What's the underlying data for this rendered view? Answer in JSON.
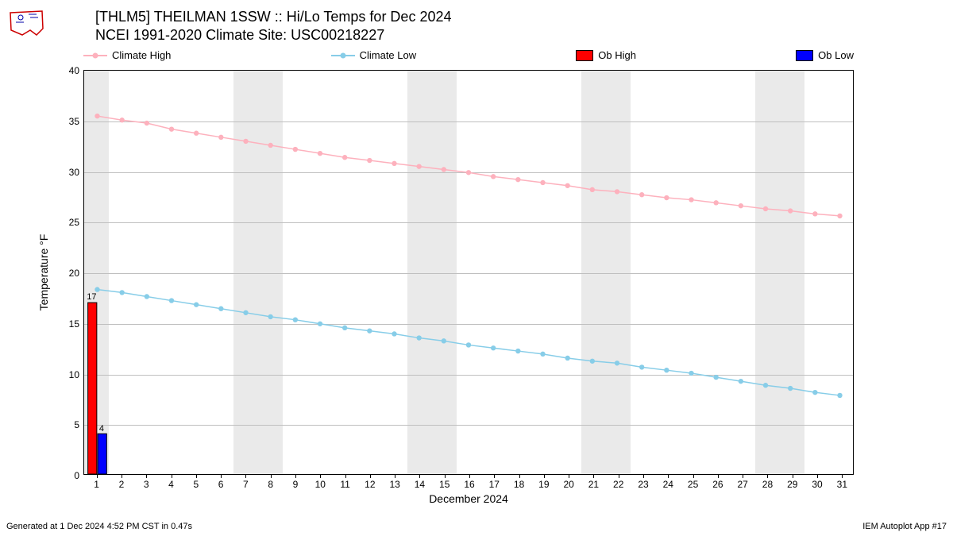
{
  "title_line1": "[THLM5] THEILMAN 1SSW :: Hi/Lo Temps for Dec 2024",
  "title_line2": "NCEI 1991-2020 Climate Site: USC00218227",
  "ylabel": "Temperature °F",
  "xlabel": "December 2024",
  "footer_left": "Generated at 1 Dec 2024 4:52 PM CST in 0.47s",
  "footer_right": "IEM Autoplot App #17",
  "legend": {
    "climate_high": "Climate High",
    "climate_low": "Climate Low",
    "ob_high": "Ob High",
    "ob_low": "Ob Low"
  },
  "colors": {
    "climate_high": "#fdb1bd",
    "climate_low": "#87cde8",
    "ob_high_fill": "#ff0000",
    "ob_high_stroke": "#000000",
    "ob_low_fill": "#0000ff",
    "ob_low_stroke": "#000000",
    "grid": "#bfbfbf",
    "weekend_band": "#eaeaea",
    "background": "#ffffff",
    "text": "#000000"
  },
  "chart": {
    "type": "line+bar",
    "xlim": [
      0.5,
      31.5
    ],
    "ylim": [
      0,
      40
    ],
    "xtick_step": 1,
    "ytick_step": 5,
    "x_days": [
      1,
      2,
      3,
      4,
      5,
      6,
      7,
      8,
      9,
      10,
      11,
      12,
      13,
      14,
      15,
      16,
      17,
      18,
      19,
      20,
      21,
      22,
      23,
      24,
      25,
      26,
      27,
      28,
      29,
      30,
      31
    ],
    "climate_high": [
      35.5,
      35.1,
      34.8,
      34.2,
      33.8,
      33.4,
      33.0,
      32.6,
      32.2,
      31.8,
      31.4,
      31.1,
      30.8,
      30.5,
      30.2,
      29.9,
      29.5,
      29.2,
      28.9,
      28.6,
      28.2,
      28.0,
      27.7,
      27.4,
      27.2,
      26.9,
      26.6,
      26.3,
      26.1,
      25.8,
      25.6
    ],
    "climate_low": [
      18.3,
      18.0,
      17.6,
      17.2,
      16.8,
      16.4,
      16.0,
      15.6,
      15.3,
      14.9,
      14.5,
      14.2,
      13.9,
      13.5,
      13.2,
      12.8,
      12.5,
      12.2,
      11.9,
      11.5,
      11.2,
      11.0,
      10.6,
      10.3,
      10.0,
      9.6,
      9.2,
      8.8,
      8.5,
      8.1,
      7.8
    ],
    "ob_high_bars": [
      {
        "day": 1,
        "value": 17
      }
    ],
    "ob_low_bars": [
      {
        "day": 1,
        "value": 4
      }
    ],
    "weekend_days": [
      1,
      7,
      8,
      14,
      15,
      21,
      22,
      28,
      29
    ],
    "marker_radius": 3.2,
    "line_width": 1.5,
    "bar_half_width": 0.18
  },
  "typography": {
    "title_fontsize": 18,
    "label_fontsize": 14,
    "tick_fontsize": 12,
    "legend_fontsize": 13,
    "footer_fontsize": 11,
    "bar_label_fontsize": 11
  }
}
